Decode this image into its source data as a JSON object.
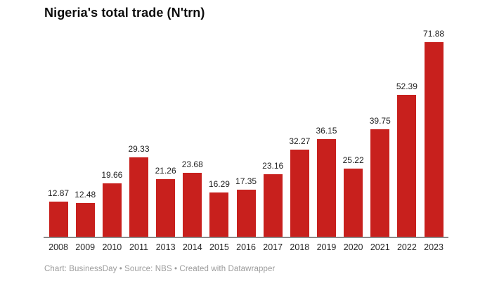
{
  "title": "Nigeria's total trade (N'trn)",
  "footer": {
    "text": "Chart: BusinessDay • Source: NBS • Created with Datawrapper"
  },
  "colors": {
    "bar": "#c8201d",
    "axis_line": "#8a8a8a",
    "value_label": "#1e1e1e",
    "year_label": "#262626",
    "footer_text": "#9b9b9b",
    "background": "#ffffff"
  },
  "chart_data": {
    "type": "bar",
    "title": "Nigeria's total trade (N'trn)",
    "categories": [
      "2008",
      "2009",
      "2010",
      "2011",
      "2013",
      "2014",
      "2015",
      "2016",
      "2017",
      "2018",
      "2019",
      "2020",
      "2021",
      "2022",
      "2023"
    ],
    "values": [
      12.87,
      12.48,
      19.66,
      29.33,
      21.26,
      23.68,
      16.29,
      17.35,
      23.16,
      32.27,
      36.15,
      25.22,
      39.75,
      52.39,
      71.88
    ],
    "xlabel": "",
    "ylabel": "",
    "ylim": [
      0,
      71.88
    ],
    "grid": false,
    "legend": "none",
    "value_labels_shown": true,
    "bar_color": "#c8201d"
  }
}
